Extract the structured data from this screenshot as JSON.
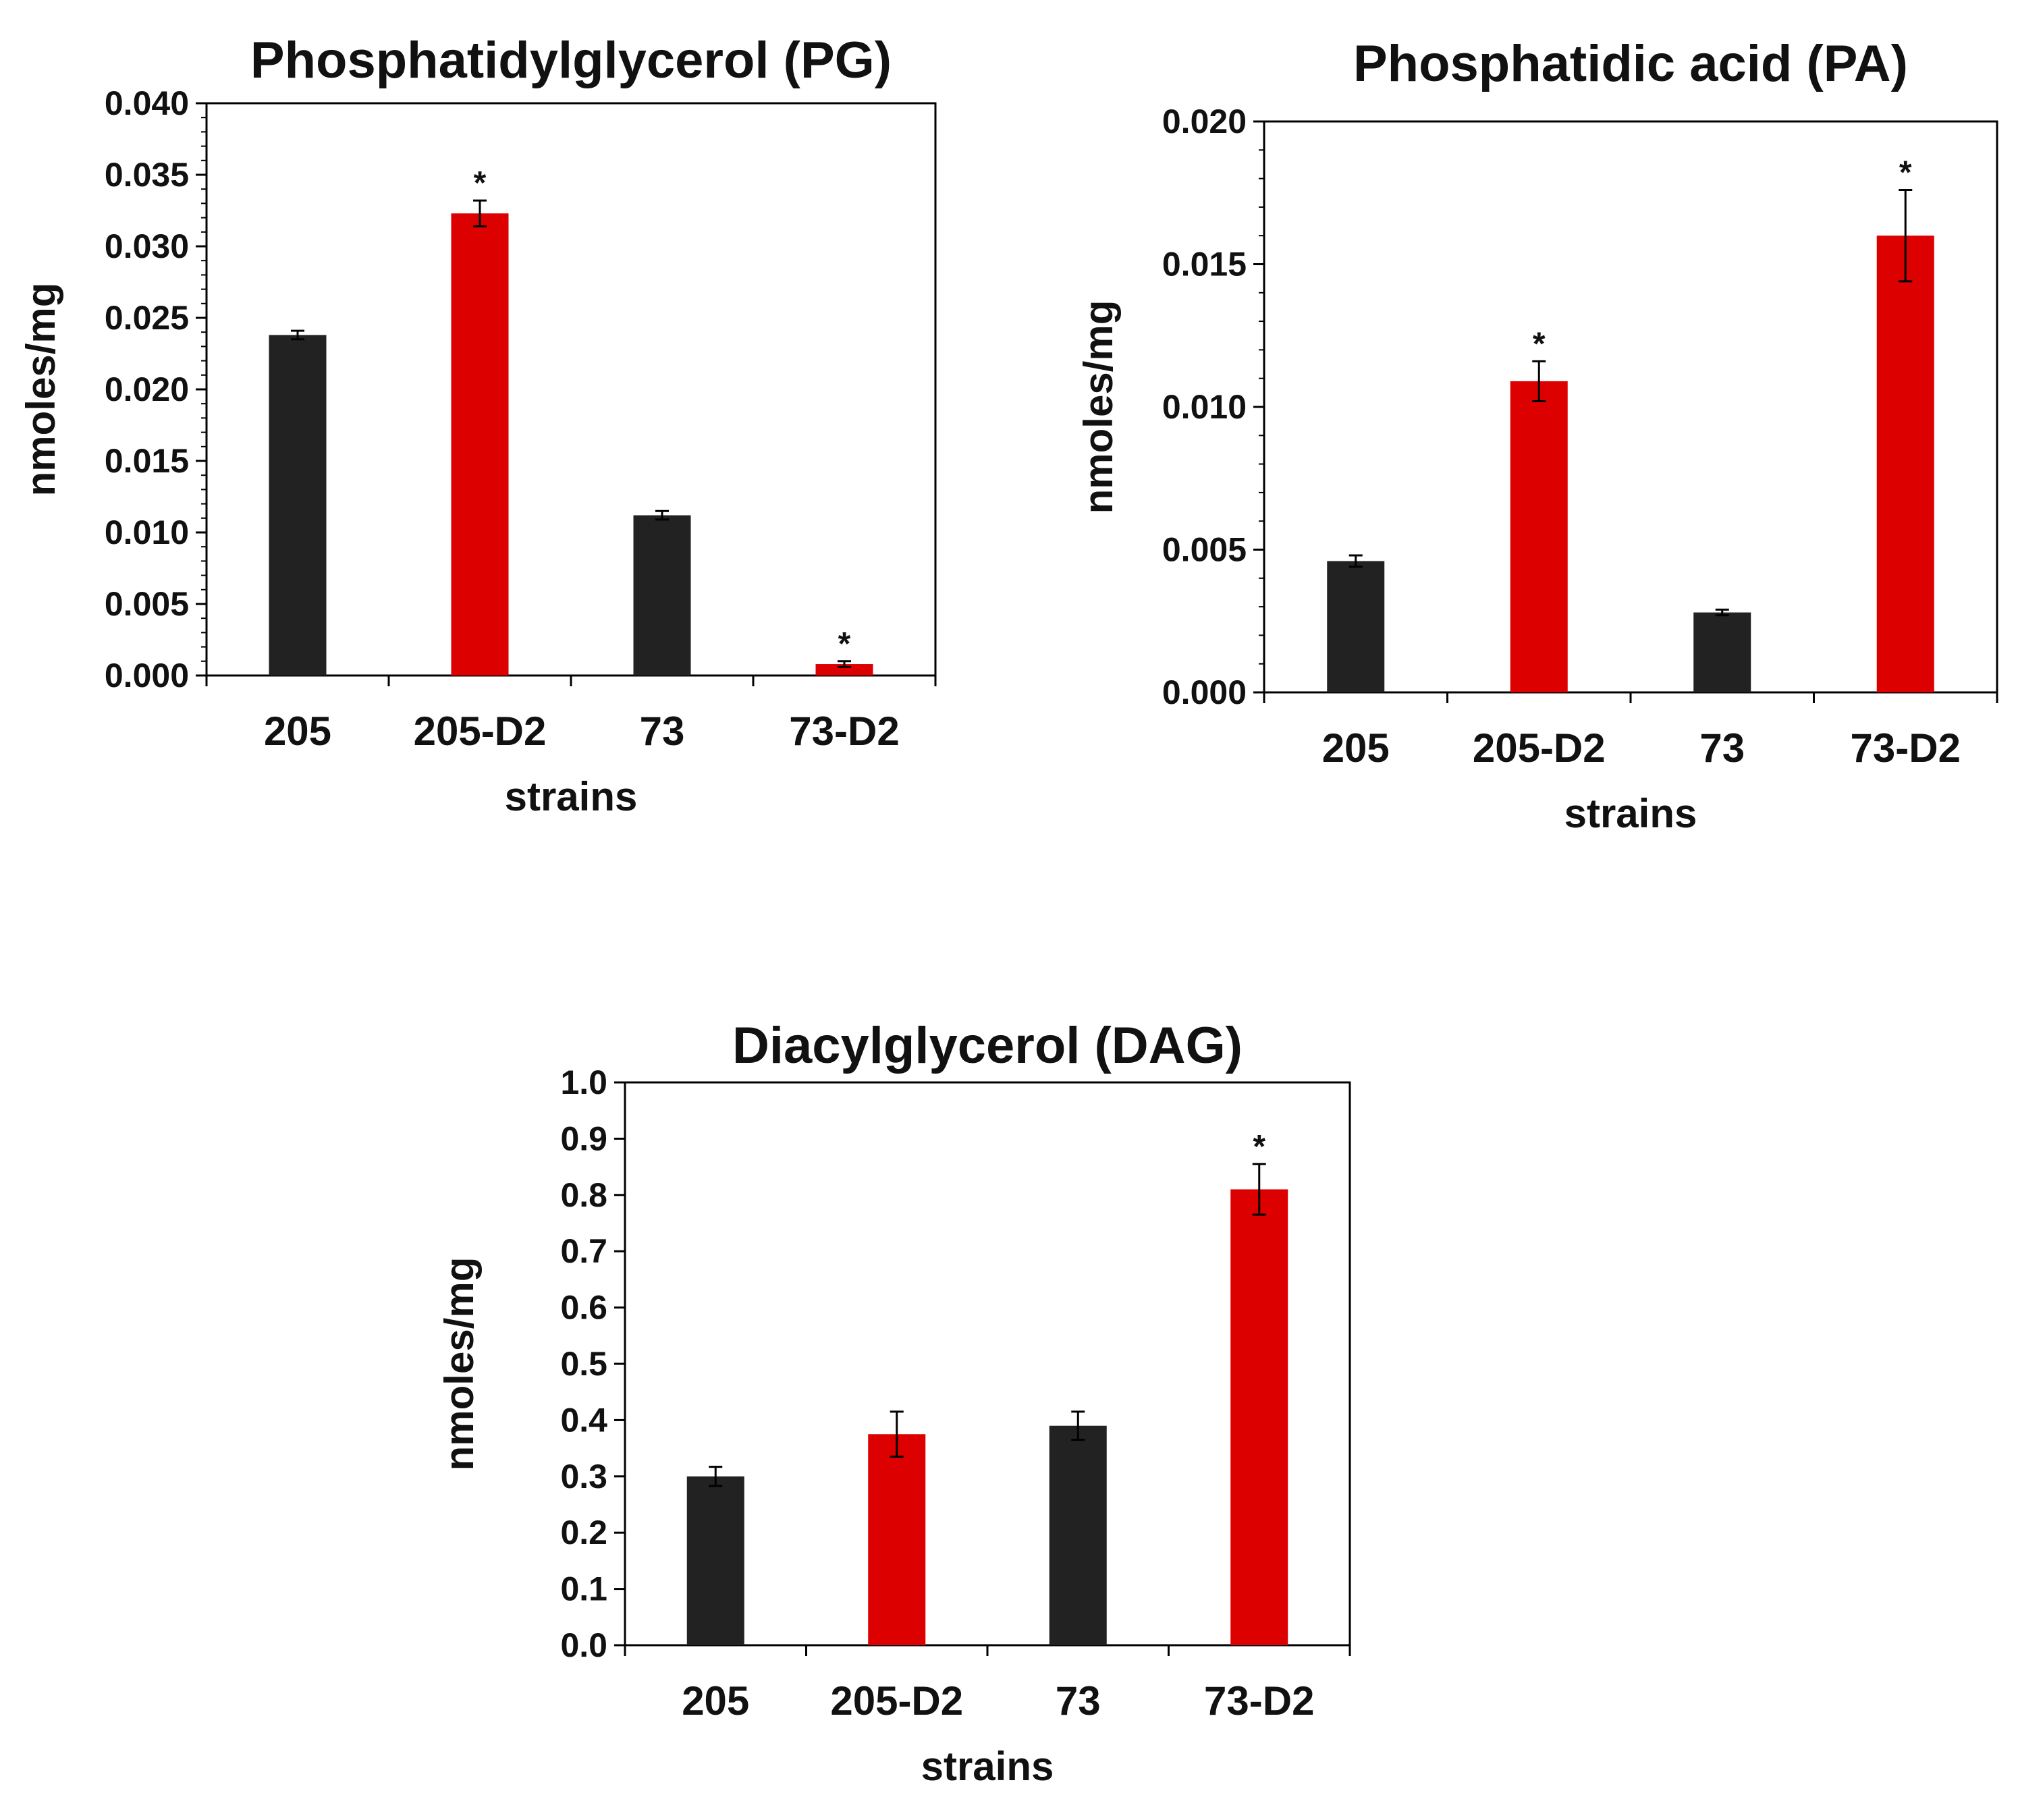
{
  "colors": {
    "control": "#222222",
    "mutant": "#dd0000",
    "axis": "#000000"
  },
  "chart_data": [
    {
      "type": "bar",
      "title": "Phosphatidylglycerol (PG)",
      "xlabel": "strains",
      "ylabel": "nmoles/mg",
      "categories": [
        "205",
        "205-D2",
        "73",
        "73-D2"
      ],
      "values": [
        0.0238,
        0.0323,
        0.0112,
        0.0008
      ],
      "errors": [
        0.0003,
        0.0009,
        0.0003,
        0.0002
      ],
      "significant": [
        "",
        "*",
        "",
        "*"
      ],
      "bar_colors": [
        "control",
        "mutant",
        "control",
        "mutant"
      ],
      "ylim": [
        0,
        0.04
      ],
      "yticks": [
        "0.000",
        "0.005",
        "0.010",
        "0.015",
        "0.020",
        "0.025",
        "0.030",
        "0.035",
        "0.040"
      ]
    },
    {
      "type": "bar",
      "title": "Phosphatidic acid (PA)",
      "xlabel": "strains",
      "ylabel": "nmoles/mg",
      "categories": [
        "205",
        "205-D2",
        "73",
        "73-D2"
      ],
      "values": [
        0.0046,
        0.0109,
        0.0028,
        0.016
      ],
      "errors": [
        0.0002,
        0.0007,
        0.0001,
        0.0016
      ],
      "significant": [
        "",
        "*",
        "",
        "*"
      ],
      "bar_colors": [
        "control",
        "mutant",
        "control",
        "mutant"
      ],
      "ylim": [
        0,
        0.02
      ],
      "yticks": [
        "0.000",
        "0.005",
        "0.010",
        "0.015",
        "0.020"
      ]
    },
    {
      "type": "bar",
      "title": "Diacylglycerol (DAG)",
      "xlabel": "strains",
      "ylabel": "nmoles/mg",
      "categories": [
        "205",
        "205-D2",
        "73",
        "73-D2"
      ],
      "values": [
        0.3,
        0.375,
        0.39,
        0.81
      ],
      "errors": [
        0.017,
        0.04,
        0.025,
        0.045
      ],
      "significant": [
        "",
        "",
        "",
        "*"
      ],
      "bar_colors": [
        "control",
        "mutant",
        "control",
        "mutant"
      ],
      "ylim": [
        0,
        1.0
      ],
      "yticks": [
        "0.0",
        "0.1",
        "0.2",
        "0.3",
        "0.4",
        "0.5",
        "0.6",
        "0.7",
        "0.8",
        "0.9",
        "1.0"
      ]
    }
  ]
}
